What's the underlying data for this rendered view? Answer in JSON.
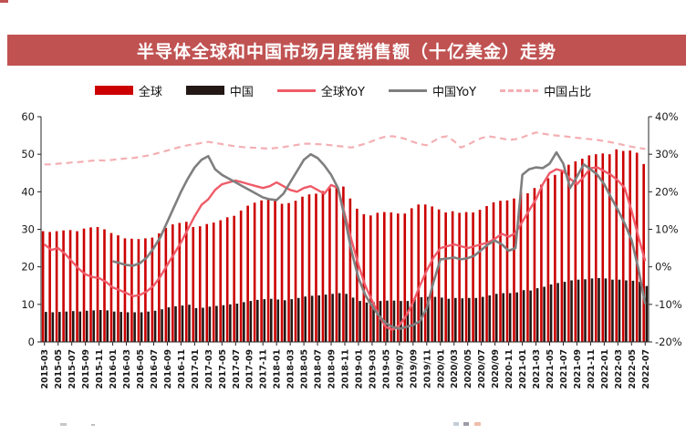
{
  "header": {
    "title": "半导体全球和中国市场月度销售额（十亿美金）走势"
  },
  "colors": {
    "title_bar_bg": "#c05252",
    "title_text": "#ffffff",
    "axis_text": "#1a1a1a",
    "global_bar": "#cc0000",
    "china_bar": "#231815",
    "global_yoy_line": "#ef5b68",
    "china_yoy_line": "#7f7f7f",
    "china_share_line": "#f4afb3"
  },
  "chart_data": {
    "type": "combo-bar-line",
    "title": "半导体全球和中国市场月度销售额（十亿美金）走势",
    "grid": false,
    "legend_position": "top",
    "ylim_left": [
      0,
      60
    ],
    "ylim_right": [
      -20,
      40
    ],
    "left_ticks": [
      "0",
      "10",
      "20",
      "30",
      "40",
      "50",
      "60"
    ],
    "right_ticks": [
      "40%",
      "30%",
      "20%",
      "10%",
      "0%",
      "-10%",
      "-20%"
    ],
    "x_tick_labels": [
      "2015-03",
      "2015-05",
      "2015-07",
      "2015-09",
      "2015-11",
      "2016-01",
      "2016-03",
      "2016-05",
      "2016-07",
      "2016-09",
      "2016-11",
      "2017-01",
      "2017-03",
      "2017-05",
      "2017-07",
      "2017-09",
      "2017-11",
      "2018-01",
      "2018-03",
      "2018-05",
      "2018-07",
      "2018-09",
      "2018-11",
      "2019-01",
      "2019-03",
      "2019-05",
      "2019/07",
      "2019/09",
      "2019/11",
      "2020/01",
      "2020/03",
      "2020/05",
      "2020/07",
      "2020/09",
      "2020-11",
      "2021-01",
      "2021-03",
      "2021-05",
      "2021-07",
      "2021-09",
      "2021-11",
      "2022-01",
      "2022-03",
      "2022-05",
      "2022-07"
    ],
    "months": [
      "2015-03",
      "2015-04",
      "2015-05",
      "2015-06",
      "2015-07",
      "2015-08",
      "2015-09",
      "2015-10",
      "2015-11",
      "2015-12",
      "2016-01",
      "2016-02",
      "2016-03",
      "2016-04",
      "2016-05",
      "2016-06",
      "2016-07",
      "2016-08",
      "2016-09",
      "2016-10",
      "2016-11",
      "2016-12",
      "2017-01",
      "2017-02",
      "2017-03",
      "2017-04",
      "2017-05",
      "2017-06",
      "2017-07",
      "2017-08",
      "2017-09",
      "2017-10",
      "2017-11",
      "2017-12",
      "2018-01",
      "2018-02",
      "2018-03",
      "2018-04",
      "2018-05",
      "2018-06",
      "2018-07",
      "2018-08",
      "2018-09",
      "2018-10",
      "2018-11",
      "2018-12",
      "2019-01",
      "2019-02",
      "2019-03",
      "2019-04",
      "2019-05",
      "2019-06",
      "2019-07",
      "2019-08",
      "2019-09",
      "2019-10",
      "2019-11",
      "2019-12",
      "2020-01",
      "2020-02",
      "2020-03",
      "2020-04",
      "2020-05",
      "2020-06",
      "2020-07",
      "2020-08",
      "2020-09",
      "2020-10",
      "2020-11",
      "2020-12",
      "2021-01",
      "2021-02",
      "2021-03",
      "2021-04",
      "2021-05",
      "2021-06",
      "2021-07",
      "2021-08",
      "2021-09",
      "2021-10",
      "2021-11",
      "2021-12",
      "2022-01",
      "2022-02",
      "2022-03",
      "2022-04",
      "2022-05",
      "2022-06",
      "2022-07"
    ],
    "series": [
      {
        "name": "全球",
        "kind": "bar",
        "axis": "left",
        "color_key": "global_bar",
        "values": [
          29.5,
          29.3,
          29.5,
          29.7,
          29.8,
          29.5,
          30.2,
          30.5,
          30.6,
          30.0,
          29.0,
          28.4,
          27.6,
          27.5,
          27.4,
          27.6,
          27.8,
          28.9,
          30.4,
          31.3,
          31.7,
          32.0,
          30.6,
          30.8,
          31.4,
          31.8,
          32.4,
          33.2,
          33.6,
          35.0,
          36.3,
          37.1,
          37.7,
          38.0,
          37.6,
          36.8,
          37.0,
          37.6,
          38.7,
          39.3,
          39.5,
          40.2,
          41.0,
          41.8,
          41.4,
          38.2,
          35.5,
          34.0,
          33.7,
          34.4,
          34.6,
          34.5,
          34.2,
          34.2,
          35.6,
          36.6,
          36.6,
          36.1,
          35.3,
          34.5,
          34.8,
          34.4,
          34.6,
          34.5,
          35.2,
          36.2,
          37.2,
          37.6,
          37.7,
          38.2,
          40.0,
          39.6,
          41.0,
          41.9,
          43.6,
          44.5,
          45.4,
          47.2,
          48.1,
          48.8,
          49.7,
          50.0,
          50.2,
          50.0,
          51.3,
          50.9,
          51.0,
          50.4,
          47.4
        ]
      },
      {
        "name": "中国",
        "kind": "bar",
        "axis": "left",
        "color_key": "china_bar",
        "values": [
          8.0,
          7.9,
          8.0,
          8.1,
          8.2,
          8.1,
          8.3,
          8.4,
          8.5,
          8.4,
          8.1,
          8.0,
          7.9,
          7.9,
          7.9,
          8.1,
          8.3,
          8.7,
          9.2,
          9.5,
          9.7,
          9.9,
          9.0,
          9.1,
          9.4,
          9.6,
          9.8,
          10.0,
          10.2,
          10.6,
          10.9,
          11.2,
          11.4,
          11.5,
          11.3,
          11.1,
          11.4,
          11.7,
          12.1,
          12.3,
          12.4,
          12.6,
          12.8,
          13.0,
          12.8,
          11.8,
          10.9,
          10.5,
          10.6,
          10.9,
          11.0,
          11.0,
          10.9,
          10.9,
          11.5,
          11.9,
          12.0,
          12.0,
          11.8,
          11.5,
          11.7,
          11.6,
          11.7,
          11.7,
          12.0,
          12.4,
          12.8,
          13.0,
          13.0,
          13.2,
          13.8,
          13.7,
          14.3,
          14.7,
          15.3,
          15.7,
          16.0,
          16.4,
          16.6,
          16.7,
          16.9,
          17.0,
          16.9,
          16.6,
          16.6,
          16.4,
          16.3,
          16.0,
          14.9
        ]
      },
      {
        "name": "全球YoY",
        "kind": "line",
        "axis": "right",
        "color_key": "global_yoy_line",
        "values": [
          6.0,
          4.5,
          5.0,
          3.5,
          1.5,
          -0.5,
          -2.0,
          -2.7,
          -3.0,
          -4.0,
          -5.5,
          -6.2,
          -7.0,
          -7.8,
          -7.5,
          -6.5,
          -5.0,
          -2.5,
          0.5,
          3.5,
          6.5,
          10.0,
          13.5,
          16.5,
          18.0,
          20.5,
          22.0,
          22.5,
          23.0,
          22.5,
          22.0,
          21.5,
          21.0,
          21.5,
          22.5,
          21.5,
          20.5,
          20.0,
          21.0,
          21.5,
          20.5,
          19.5,
          21.8,
          21.0,
          14.0,
          7.0,
          0.5,
          -5.0,
          -9.0,
          -13.0,
          -16.0,
          -16.8,
          -15.5,
          -13.0,
          -9.5,
          -5.0,
          -1.0,
          2.5,
          5.0,
          5.5,
          6.0,
          5.5,
          5.0,
          5.5,
          6.0,
          6.5,
          7.5,
          8.8,
          8.0,
          9.0,
          12.0,
          15.0,
          18.0,
          22.0,
          25.0,
          26.0,
          25.5,
          23.5,
          22.0,
          24.0,
          26.3,
          26.5,
          25.5,
          24.5,
          23.0,
          21.0,
          15.0,
          8.0,
          1.5
        ]
      },
      {
        "name": "中国YoY",
        "kind": "line",
        "axis": "right",
        "color_key": "china_yoy_line",
        "values": [
          null,
          null,
          null,
          null,
          null,
          null,
          null,
          null,
          null,
          null,
          1.5,
          1.0,
          0.5,
          0.3,
          1.0,
          2.5,
          5.0,
          8.0,
          12.0,
          16.0,
          20.0,
          23.5,
          26.5,
          28.5,
          29.5,
          26.0,
          24.5,
          23.5,
          22.5,
          21.5,
          20.5,
          19.5,
          18.5,
          18.0,
          17.8,
          19.5,
          22.5,
          25.5,
          28.5,
          30.0,
          29.0,
          27.0,
          24.5,
          21.0,
          13.0,
          4.0,
          -3.0,
          -7.5,
          -10.5,
          -13.0,
          -15.0,
          -16.0,
          -16.5,
          -16.0,
          -15.5,
          -14.5,
          -11.0,
          -4.0,
          2.0,
          2.2,
          2.5,
          2.0,
          2.3,
          3.0,
          4.5,
          6.0,
          7.0,
          6.0,
          4.3,
          5.0,
          24.5,
          26.0,
          26.5,
          26.3,
          27.5,
          30.5,
          27.5,
          21.0,
          24.0,
          27.3,
          26.0,
          24.5,
          22.0,
          18.5,
          15.2,
          11.5,
          7.2,
          -0.5,
          -10.0
        ]
      },
      {
        "name": "中国占比",
        "kind": "dashed-line",
        "axis": "right",
        "color_key": "china_share_line",
        "values": [
          27.3,
          27.3,
          27.5,
          27.6,
          27.8,
          27.9,
          28.1,
          28.3,
          28.4,
          28.3,
          28.5,
          28.7,
          28.9,
          29.0,
          29.3,
          29.6,
          30.0,
          30.5,
          31.0,
          31.5,
          32.0,
          32.4,
          32.7,
          33.0,
          33.3,
          33.0,
          32.7,
          32.4,
          32.1,
          31.9,
          31.8,
          31.7,
          31.6,
          31.5,
          31.7,
          31.9,
          32.2,
          32.5,
          32.8,
          32.8,
          32.7,
          32.6,
          32.4,
          32.2,
          32.0,
          31.8,
          32.3,
          32.8,
          33.5,
          34.2,
          34.7,
          34.8,
          34.5,
          34.0,
          33.3,
          32.7,
          32.4,
          33.5,
          34.5,
          34.8,
          33.5,
          31.8,
          32.5,
          33.5,
          34.3,
          34.8,
          34.5,
          34.2,
          33.8,
          34.0,
          34.5,
          35.2,
          35.8,
          35.5,
          35.2,
          35.0,
          34.8,
          34.6,
          34.4,
          34.2,
          34.0,
          33.8,
          33.5,
          33.2,
          32.8,
          32.4,
          32.0,
          31.7,
          31.4
        ]
      }
    ]
  }
}
